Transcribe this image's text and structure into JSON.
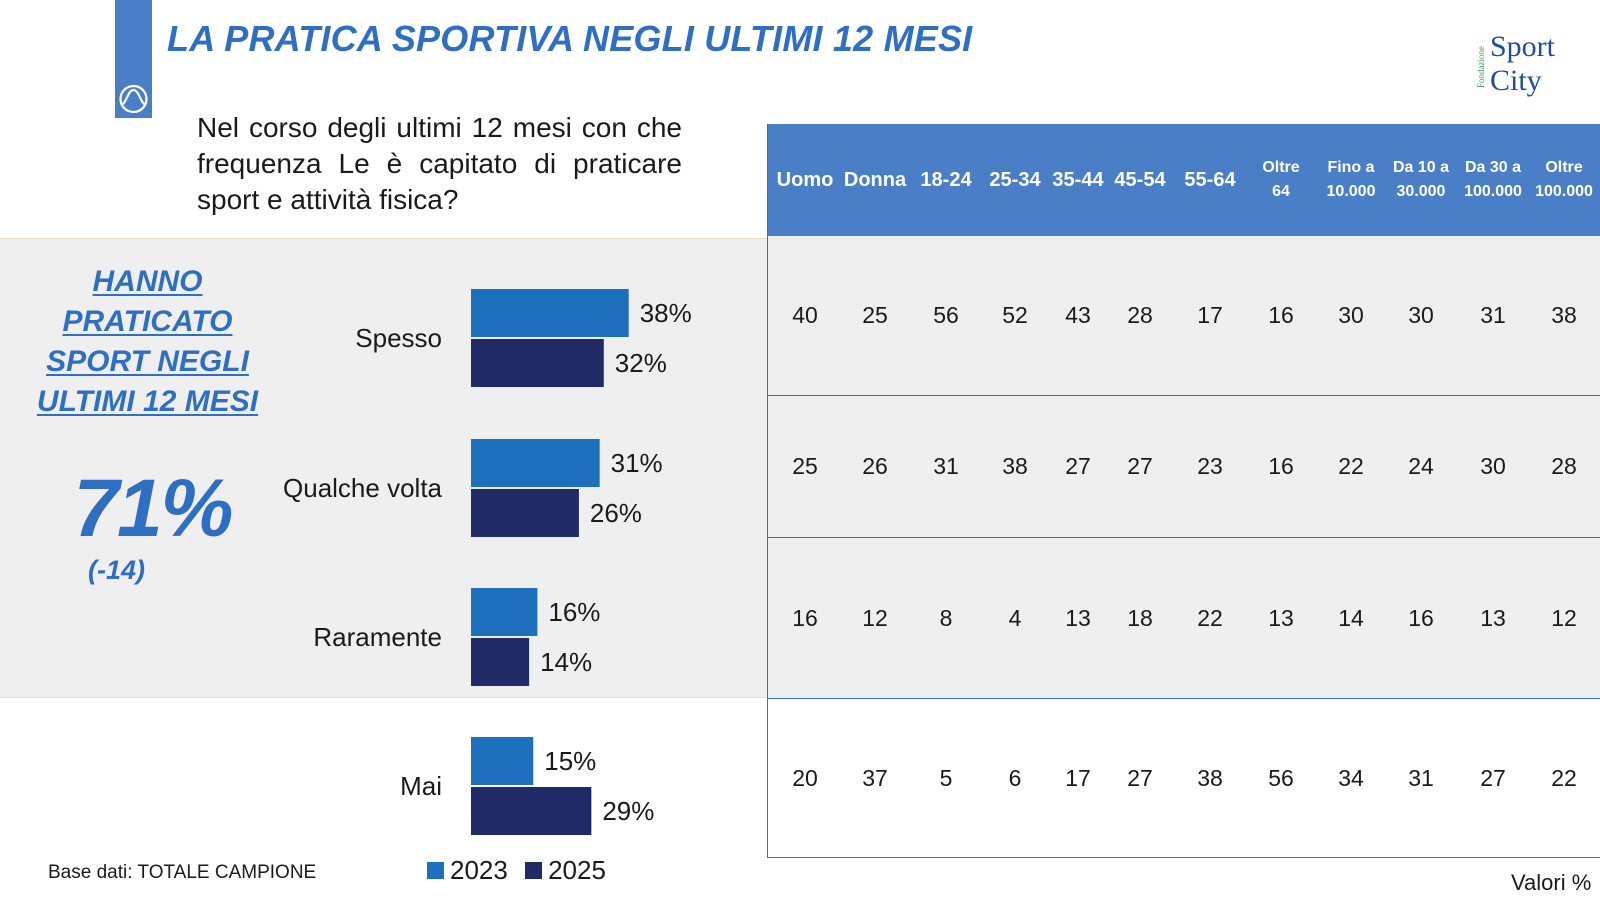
{
  "title": "LA PRATICA SPORTIVA NEGLI ULTIMI 12 MESI",
  "logo": {
    "subtitle": "Fondazione",
    "word1": "Sport",
    "word2": "City"
  },
  "question": "Nel corso degli ultimi 12 mesi con che frequenza Le è capitato di praticare sport e attività fisica?",
  "summary": {
    "label": "HANNO PRATICATO SPORT NEGLI ULTIMI 12 MESI",
    "value": "71%",
    "change": "(-14)"
  },
  "footer": {
    "base_note": "Base dati: TOTALE CAMPIONE",
    "units_note": "Valori %"
  },
  "colors": {
    "series_2023": "#1f6fbf",
    "series_2025": "#1f2a66",
    "accent": "#2f6fc3",
    "header_bg": "#4a7fc7"
  },
  "chart_data": {
    "type": "bar",
    "orientation": "horizontal",
    "categories": [
      "Spesso",
      "Qualche volta",
      "Raramente",
      "Mai"
    ],
    "series": [
      {
        "name": "2023",
        "values": [
          38,
          31,
          16,
          15
        ]
      },
      {
        "name": "2025",
        "values": [
          32,
          26,
          14,
          29
        ]
      }
    ],
    "value_labels": [
      [
        "38%",
        "31%",
        "16%",
        "15%"
      ],
      [
        "32%",
        "26%",
        "14%",
        "29%"
      ]
    ],
    "legend_position": "bottom",
    "unit": "%"
  },
  "table": {
    "headers": [
      "Uomo",
      "Donna",
      "18-24",
      "25-34",
      "35-44",
      "45-54",
      "55-64",
      "Oltre\n64",
      "Fino a\n10.000",
      "Da 10 a\n30.000",
      "Da 30 a\n100.000",
      "Oltre\n100.000"
    ],
    "rows": [
      [
        "40",
        "25",
        "56",
        "52",
        "43",
        "28",
        "17",
        "16",
        "30",
        "30",
        "31",
        "38"
      ],
      [
        "25",
        "26",
        "31",
        "38",
        "27",
        "27",
        "23",
        "16",
        "22",
        "24",
        "30",
        "28"
      ],
      [
        "16",
        "12",
        "8",
        "4",
        "13",
        "18",
        "22",
        "13",
        "14",
        "16",
        "13",
        "12"
      ],
      [
        "20",
        "37",
        "5",
        "6",
        "17",
        "27",
        "38",
        "56",
        "34",
        "31",
        "27",
        "22"
      ]
    ]
  }
}
